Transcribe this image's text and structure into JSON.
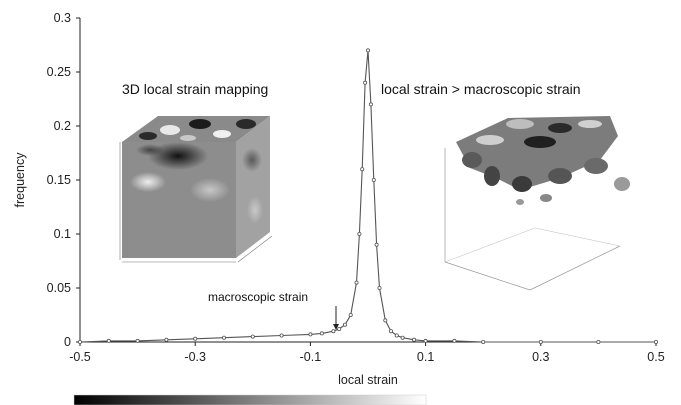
{
  "chart_data": {
    "type": "line",
    "xlabel": "local strain",
    "ylabel": "frequency",
    "xlim": [
      -0.5,
      0.5
    ],
    "ylim": [
      0,
      0.3
    ],
    "xticks": [
      "-0.5",
      "-0.3",
      "-0.1",
      "0.1",
      "0.3",
      "0.5"
    ],
    "yticks": [
      "0",
      "0.05",
      "0.1",
      "0.15",
      "0.2",
      "0.25",
      "0.3"
    ],
    "grid": false,
    "series": [
      {
        "marker": "open-circle",
        "x": [
          -0.5,
          -0.45,
          -0.4,
          -0.35,
          -0.3,
          -0.25,
          -0.2,
          -0.15,
          -0.1,
          -0.08,
          -0.06,
          -0.05,
          -0.04,
          -0.03,
          -0.02,
          -0.015,
          -0.01,
          -0.005,
          0,
          0.005,
          0.01,
          0.015,
          0.02,
          0.03,
          0.04,
          0.05,
          0.06,
          0.08,
          0.1,
          0.15,
          0.2,
          0.3,
          0.4,
          0.5
        ],
        "y": [
          0,
          0.001,
          0.001,
          0.002,
          0.003,
          0.004,
          0.005,
          0.006,
          0.007,
          0.008,
          0.01,
          0.012,
          0.016,
          0.025,
          0.055,
          0.1,
          0.16,
          0.24,
          0.27,
          0.22,
          0.15,
          0.09,
          0.05,
          0.02,
          0.01,
          0.006,
          0.004,
          0.002,
          0.001,
          0.001,
          0,
          0,
          0,
          0
        ]
      }
    ],
    "annotations": {
      "left_title": "3D local strain mapping",
      "right_title": "local strain > macroscopic strain",
      "pointer_label": "macroscopic strain"
    }
  },
  "colors": {
    "line": "#555555",
    "axis": "#222222",
    "colorbar_start": "#000000",
    "colorbar_end": "#ffffff"
  }
}
